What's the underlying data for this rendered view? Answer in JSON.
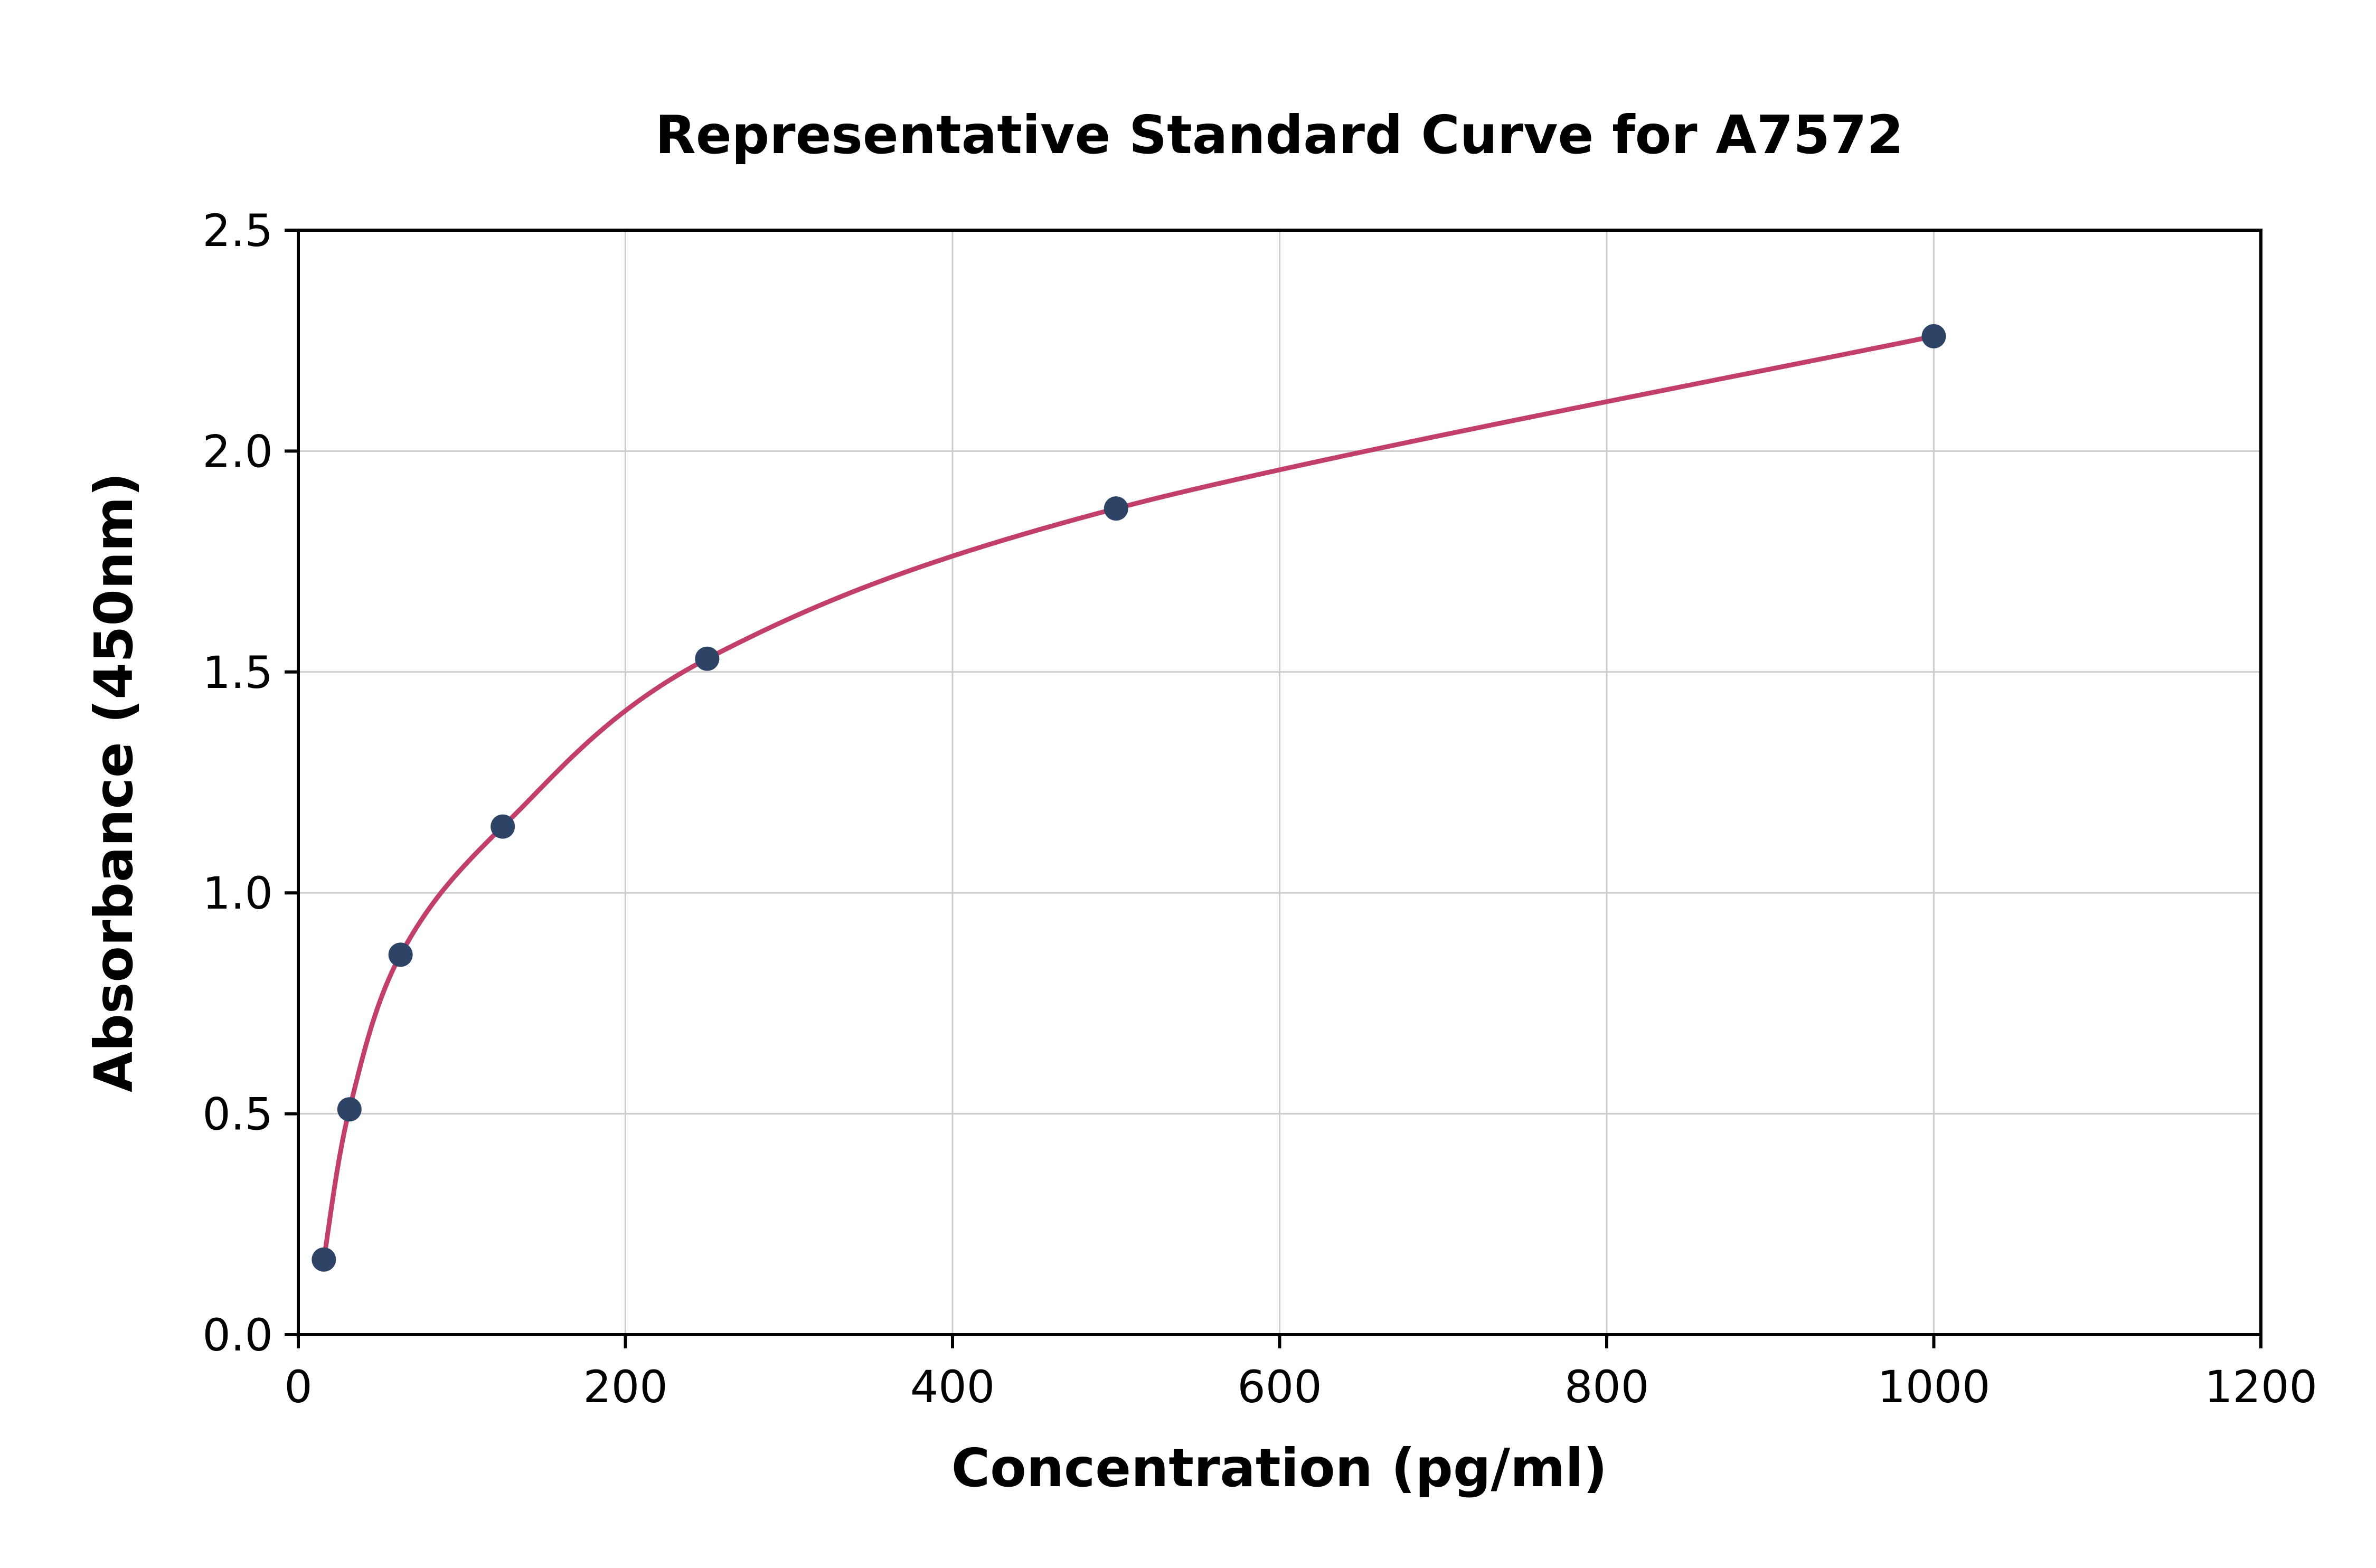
{
  "chart_data": {
    "type": "scatter",
    "title": "Representative Standard Curve for A7572",
    "xlabel": "Concentration (pg/ml)",
    "ylabel": "Absorbance (450nm)",
    "xlim": [
      0,
      1200
    ],
    "ylim": [
      0,
      2.5
    ],
    "xticks": [
      0,
      200,
      400,
      600,
      800,
      1000,
      1200
    ],
    "xtick_labels": [
      "0",
      "200",
      "400",
      "600",
      "800",
      "1000",
      "1200"
    ],
    "yticks": [
      0,
      0.5,
      1.0,
      1.5,
      2.0,
      2.5
    ],
    "ytick_labels": [
      "0.0",
      "0.5",
      "1.0",
      "1.5",
      "2.0",
      "2.5"
    ],
    "grid": true,
    "legend_position": "none",
    "series": [
      {
        "name": "standard-curve-fit",
        "type": "line",
        "color": "#c13f6a",
        "x": [
          15.6,
          31.25,
          62.5,
          125,
          250,
          500,
          1000
        ],
        "y": [
          0.17,
          0.51,
          0.86,
          1.15,
          1.53,
          1.87,
          2.26
        ]
      },
      {
        "name": "standard-data-points",
        "type": "scatter",
        "color": "#2e4466",
        "x": [
          15.6,
          31.25,
          62.5,
          125,
          250,
          500,
          1000
        ],
        "y": [
          0.17,
          0.51,
          0.86,
          1.15,
          1.53,
          1.87,
          2.26
        ]
      }
    ]
  },
  "style": {
    "background_color": "#ffffff",
    "grid_color": "#cccccc",
    "axis_color": "#000000",
    "curve_color": "#c13f6a",
    "point_color": "#2e4466"
  }
}
